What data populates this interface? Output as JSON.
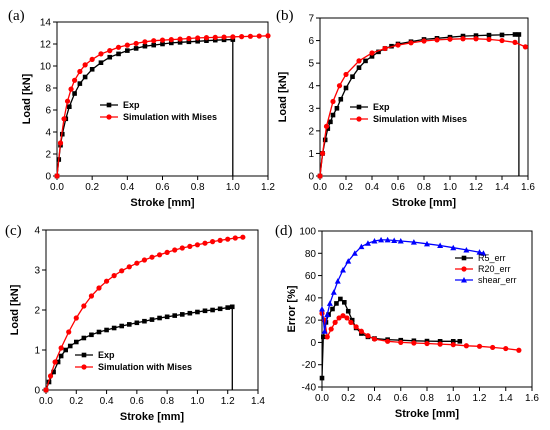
{
  "chart_data": [
    {
      "type": "line",
      "panel_label": "(a)",
      "xlabel": "Stroke [mm]",
      "ylabel": "Load [kN]",
      "xlim": [
        0,
        1.2
      ],
      "ylim": [
        0,
        14
      ],
      "xticks": [
        0.0,
        0.2,
        0.4,
        0.6,
        0.8,
        1.0,
        1.2
      ],
      "yticks": [
        0,
        2,
        4,
        6,
        8,
        10,
        12,
        14
      ],
      "xtick_labels": [
        "0.0",
        "0.2",
        "0.4",
        "0.6",
        "0.8",
        "1.0",
        "1.2"
      ],
      "ytick_labels": [
        "0",
        "2",
        "4",
        "6",
        "8",
        "10",
        "12",
        "14"
      ],
      "legend_position": "center-left",
      "series": [
        {
          "name": "Exp",
          "color": "#000000",
          "marker": "square",
          "x": [
            0,
            0.01,
            0.02,
            0.03,
            0.05,
            0.07,
            0.1,
            0.13,
            0.16,
            0.2,
            0.25,
            0.3,
            0.35,
            0.4,
            0.45,
            0.5,
            0.55,
            0.6,
            0.65,
            0.7,
            0.75,
            0.8,
            0.85,
            0.9,
            0.95,
            1.0,
            1.0
          ],
          "y": [
            0,
            1.5,
            2.8,
            3.8,
            5.2,
            6.3,
            7.5,
            8.4,
            9.0,
            9.7,
            10.3,
            10.8,
            11.1,
            11.4,
            11.6,
            11.8,
            11.9,
            12.0,
            12.1,
            12.15,
            12.2,
            12.25,
            12.3,
            12.35,
            12.38,
            12.4,
            0
          ]
        },
        {
          "name": "Simulation with Mises",
          "color": "#ff0000",
          "marker": "circle",
          "x": [
            0,
            0.02,
            0.04,
            0.06,
            0.08,
            0.1,
            0.13,
            0.16,
            0.2,
            0.25,
            0.3,
            0.35,
            0.4,
            0.45,
            0.5,
            0.55,
            0.6,
            0.65,
            0.7,
            0.75,
            0.8,
            0.85,
            0.9,
            0.95,
            1.0,
            1.05,
            1.1,
            1.15,
            1.2
          ],
          "y": [
            0,
            3.0,
            5.2,
            6.8,
            7.9,
            8.7,
            9.5,
            10.1,
            10.6,
            11.1,
            11.4,
            11.7,
            11.9,
            12.05,
            12.2,
            12.3,
            12.35,
            12.4,
            12.45,
            12.5,
            12.55,
            12.58,
            12.6,
            12.63,
            12.65,
            12.67,
            12.7,
            12.72,
            12.75
          ]
        }
      ]
    },
    {
      "type": "line",
      "panel_label": "(b)",
      "xlabel": "Stroke [mm]",
      "ylabel": "Load [kN]",
      "xlim": [
        0,
        1.6
      ],
      "ylim": [
        0,
        7
      ],
      "xticks": [
        0.0,
        0.2,
        0.4,
        0.6,
        0.8,
        1.0,
        1.2,
        1.4,
        1.6
      ],
      "yticks": [
        0,
        1,
        2,
        3,
        4,
        5,
        6,
        7
      ],
      "xtick_labels": [
        "0.0",
        "0.2",
        "0.4",
        "0.6",
        "0.8",
        "1.0",
        "1.2",
        "1.4",
        "1.6"
      ],
      "ytick_labels": [
        "0",
        "1",
        "2",
        "3",
        "4",
        "5",
        "6",
        "7"
      ],
      "legend_position": "center",
      "series": [
        {
          "name": "Exp",
          "color": "#000000",
          "marker": "square",
          "x": [
            0,
            0.02,
            0.04,
            0.06,
            0.08,
            0.1,
            0.13,
            0.16,
            0.2,
            0.25,
            0.3,
            0.35,
            0.4,
            0.45,
            0.5,
            0.55,
            0.6,
            0.7,
            0.8,
            0.9,
            1.0,
            1.1,
            1.2,
            1.3,
            1.4,
            1.5,
            1.53,
            1.53
          ],
          "y": [
            0,
            1.0,
            1.6,
            2.1,
            2.4,
            2.7,
            3.0,
            3.4,
            3.9,
            4.4,
            4.8,
            5.1,
            5.3,
            5.5,
            5.65,
            5.75,
            5.85,
            5.95,
            6.05,
            6.1,
            6.15,
            6.2,
            6.22,
            6.24,
            6.25,
            6.27,
            6.27,
            0
          ]
        },
        {
          "name": "Simulation with Mises",
          "color": "#ff0000",
          "marker": "circle",
          "x": [
            0,
            0.02,
            0.05,
            0.1,
            0.15,
            0.2,
            0.3,
            0.4,
            0.5,
            0.6,
            0.7,
            0.8,
            0.9,
            1.0,
            1.1,
            1.2,
            1.3,
            1.4,
            1.5,
            1.58
          ],
          "y": [
            0,
            1.0,
            2.2,
            3.3,
            4.0,
            4.5,
            5.1,
            5.45,
            5.65,
            5.8,
            5.9,
            5.98,
            6.03,
            6.06,
            6.08,
            6.08,
            6.05,
            6.0,
            5.92,
            5.72
          ]
        }
      ]
    },
    {
      "type": "line",
      "panel_label": "(c)",
      "xlabel": "Stroke [mm]",
      "ylabel": "Load [kN]",
      "xlim": [
        0,
        1.4
      ],
      "ylim": [
        0,
        4
      ],
      "xticks": [
        0.0,
        0.2,
        0.4,
        0.6,
        0.8,
        1.0,
        1.2,
        1.4
      ],
      "yticks": [
        0,
        1,
        2,
        3,
        4
      ],
      "xtick_labels": [
        "0.0",
        "0.2",
        "0.4",
        "0.6",
        "0.8",
        "1.0",
        "1.2",
        "1.4"
      ],
      "ytick_labels": [
        "0",
        "1",
        "2",
        "3",
        "4"
      ],
      "legend_position": "bottom-left",
      "series": [
        {
          "name": "Exp",
          "color": "#000000",
          "marker": "square",
          "x": [
            0,
            0.02,
            0.05,
            0.08,
            0.1,
            0.13,
            0.16,
            0.2,
            0.25,
            0.3,
            0.35,
            0.4,
            0.45,
            0.5,
            0.55,
            0.6,
            0.65,
            0.7,
            0.75,
            0.8,
            0.85,
            0.9,
            0.95,
            1.0,
            1.05,
            1.1,
            1.15,
            1.2,
            1.23,
            1.23
          ],
          "y": [
            0,
            0.2,
            0.45,
            0.7,
            0.85,
            1.0,
            1.1,
            1.2,
            1.3,
            1.38,
            1.45,
            1.5,
            1.55,
            1.6,
            1.64,
            1.68,
            1.72,
            1.76,
            1.8,
            1.83,
            1.86,
            1.89,
            1.92,
            1.95,
            1.98,
            2.0,
            2.03,
            2.06,
            2.08,
            0
          ]
        },
        {
          "name": "Simulation with Mises",
          "color": "#ff0000",
          "marker": "circle",
          "x": [
            0,
            0.03,
            0.06,
            0.1,
            0.15,
            0.2,
            0.25,
            0.3,
            0.35,
            0.4,
            0.45,
            0.5,
            0.55,
            0.6,
            0.65,
            0.7,
            0.75,
            0.8,
            0.85,
            0.9,
            0.95,
            1.0,
            1.05,
            1.1,
            1.15,
            1.2,
            1.25,
            1.3
          ],
          "y": [
            0,
            0.35,
            0.7,
            1.05,
            1.45,
            1.8,
            2.1,
            2.35,
            2.55,
            2.72,
            2.86,
            2.98,
            3.08,
            3.17,
            3.25,
            3.32,
            3.38,
            3.44,
            3.5,
            3.55,
            3.59,
            3.63,
            3.67,
            3.71,
            3.74,
            3.77,
            3.8,
            3.82
          ]
        }
      ]
    },
    {
      "type": "line",
      "panel_label": "(d)",
      "xlabel": "Stroke [mm]",
      "ylabel": "Error [%]",
      "xlim": [
        0,
        1.6
      ],
      "ylim": [
        -40,
        100
      ],
      "xticks": [
        0.0,
        0.2,
        0.4,
        0.6,
        0.8,
        1.0,
        1.2,
        1.4,
        1.6
      ],
      "yticks": [
        -40,
        -20,
        0,
        20,
        40,
        60,
        80,
        100
      ],
      "xtick_labels": [
        "0.0",
        "0.2",
        "0.4",
        "0.6",
        "0.8",
        "1.0",
        "1.2",
        "1.4",
        "1.6"
      ],
      "ytick_labels": [
        "-40",
        "-20",
        "0",
        "20",
        "40",
        "60",
        "80",
        "100"
      ],
      "legend_position": "right",
      "series": [
        {
          "name": "R5_err",
          "color": "#000000",
          "marker": "square",
          "x": [
            0.0,
            0.01,
            0.03,
            0.05,
            0.08,
            0.11,
            0.14,
            0.17,
            0.2,
            0.23,
            0.26,
            0.3,
            0.35,
            0.4,
            0.5,
            0.6,
            0.7,
            0.8,
            0.9,
            1.0,
            1.05
          ],
          "y": [
            -32,
            5,
            18,
            25,
            30,
            35,
            39,
            36,
            28,
            20,
            13,
            8,
            5,
            3.5,
            2.5,
            2,
            1.5,
            1.2,
            1,
            1,
            1
          ]
        },
        {
          "name": "R20_err",
          "color": "#ff0000",
          "marker": "circle",
          "x": [
            0.0,
            0.02,
            0.04,
            0.07,
            0.1,
            0.13,
            0.16,
            0.19,
            0.22,
            0.26,
            0.3,
            0.35,
            0.4,
            0.5,
            0.6,
            0.7,
            0.8,
            0.9,
            1.0,
            1.1,
            1.2,
            1.3,
            1.4,
            1.5
          ],
          "y": [
            26,
            20,
            5,
            12,
            18,
            22,
            24,
            22,
            18,
            14,
            10,
            6,
            3,
            1,
            0,
            -0.5,
            -1,
            -1.5,
            -2,
            -3,
            -3.5,
            -4.5,
            -5.5,
            -7
          ]
        },
        {
          "name": "shear_err",
          "color": "#0000ff",
          "marker": "triangle",
          "x": [
            0.0,
            0.02,
            0.04,
            0.06,
            0.09,
            0.12,
            0.16,
            0.2,
            0.25,
            0.3,
            0.35,
            0.4,
            0.45,
            0.5,
            0.55,
            0.6,
            0.7,
            0.8,
            0.9,
            1.0,
            1.1,
            1.2,
            1.23
          ],
          "y": [
            30,
            10,
            25,
            35,
            45,
            55,
            65,
            73,
            80,
            86,
            89,
            91,
            92,
            92,
            91.5,
            91,
            90,
            88.5,
            87,
            85,
            83,
            81,
            80
          ]
        }
      ]
    }
  ]
}
